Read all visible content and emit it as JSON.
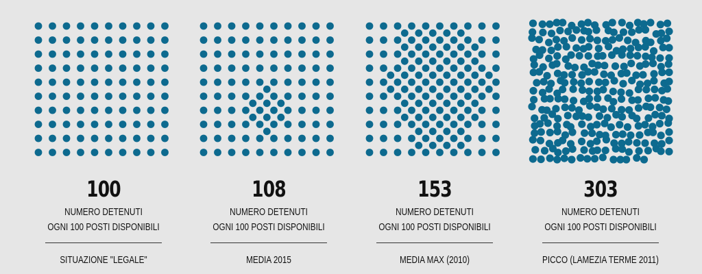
{
  "chart_data": {
    "type": "unit",
    "dot_color": "#0d6a8f",
    "capacity": 100,
    "subtitle_line1": "NUMERO DETENUTI",
    "subtitle_line2": "OGNI 100 POSTI DISPONIBILI",
    "panels": [
      {
        "value": "100",
        "count": 100,
        "label": "SITUAZIONE \"LEGALE\""
      },
      {
        "value": "108",
        "count": 108,
        "label": "MEDIA 2015"
      },
      {
        "value": "153",
        "count": 153,
        "label": "MEDIA MAX (2010)"
      },
      {
        "value": "303",
        "count": 303,
        "label": "PICCO (LAMEZIA TERME 2011)"
      }
    ]
  }
}
